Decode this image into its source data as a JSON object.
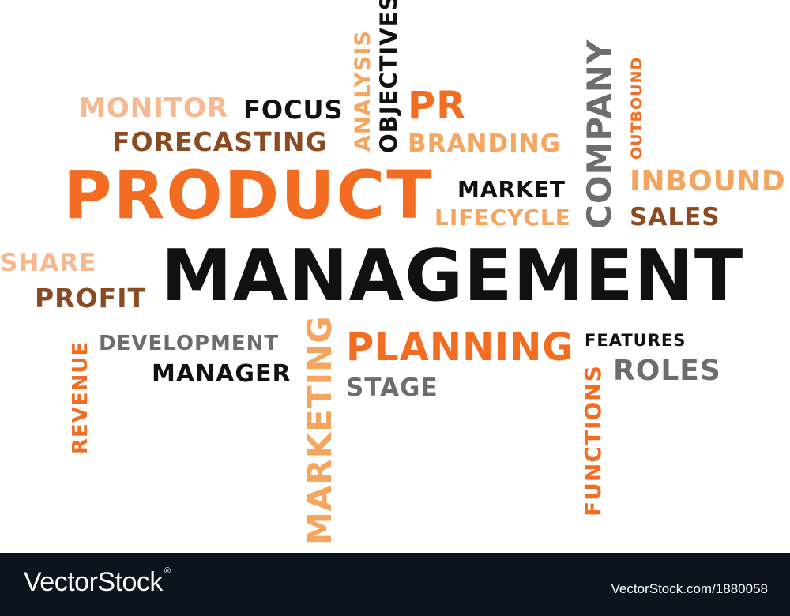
{
  "colors": {
    "black": "#111111",
    "gray": "#6d6d6d",
    "orange": "#f26d21",
    "light_orange": "#f5a55e",
    "peach": "#f6b88f",
    "brown": "#8a4a22",
    "footer_bg": "#0c141d"
  },
  "words": {
    "monitor": "MONITOR",
    "focus": "FOCUS",
    "forecasting": "FORECASTING",
    "analysis": "ANALYSIS",
    "objectives": "OBJECTIVES",
    "pr": "PR",
    "branding": "BRANDING",
    "company": "COMPANY",
    "outbound": "OUTBOUND",
    "inbound": "INBOUND",
    "product": "PRODUCT",
    "market": "MARKET",
    "lifecycle": "LIFECYCLE",
    "sales": "SALES",
    "share": "SHARE",
    "profit": "PROFIT",
    "management": "MANAGEMENT",
    "revenue": "REVENUE",
    "development": "DEVELOPMENT",
    "manager": "MANAGER",
    "marketing": "MARKETING",
    "planning": "PLANNING",
    "stage": "STAGE",
    "features": "FEATURES",
    "roles": "ROLES",
    "functions": "FUNCTIONS"
  },
  "footer": {
    "brand": "VectorStock",
    "trademark": "®",
    "image_id": "VectorStock.com/1880058"
  }
}
